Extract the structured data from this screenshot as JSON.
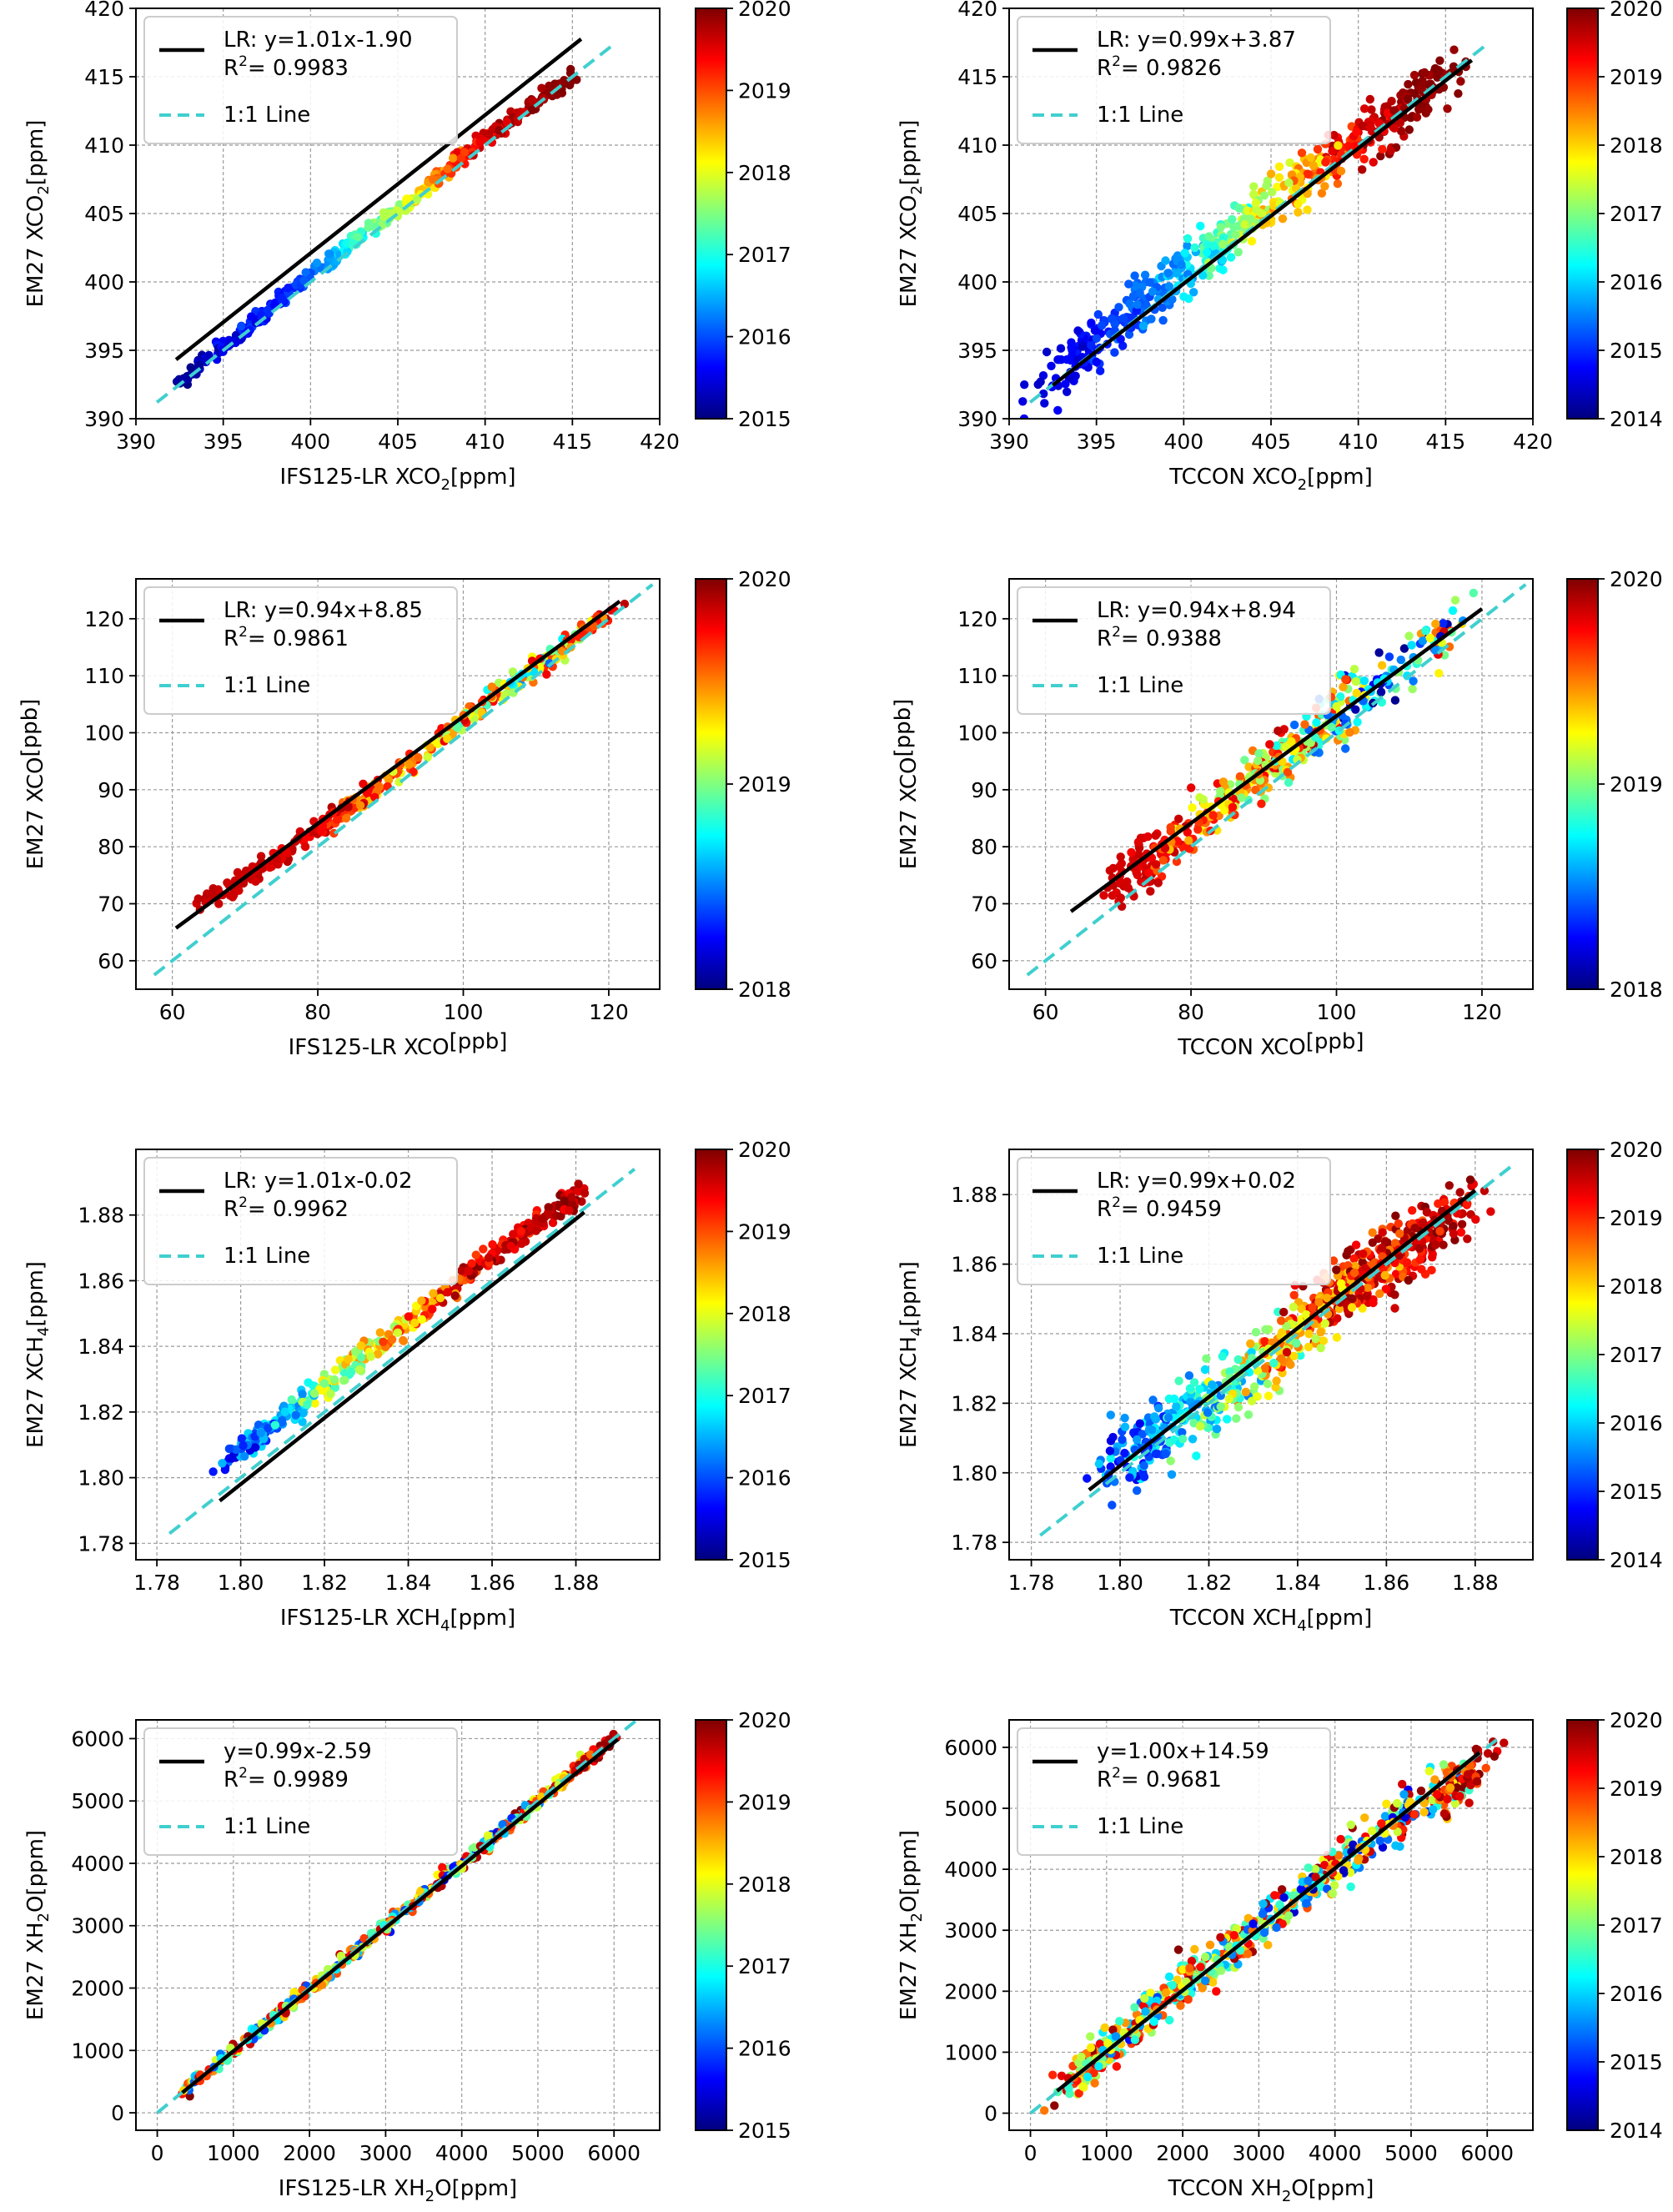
{
  "figure": {
    "colormap": [
      "#00007f",
      "#0000ff",
      "#007fff",
      "#00ffff",
      "#7fff7f",
      "#ffff00",
      "#ff7f00",
      "#ff0000",
      "#7f0000"
    ],
    "fit_line_color": "#000000",
    "identity_line_color": "#40cfcf",
    "legend_identity_label": "1:1 Line",
    "grid": true
  },
  "chart_data": [
    {
      "type": "scatter",
      "id": "xco2-ifs",
      "xlabel": "IFS125-LR XCO",
      "xlabel_sub": "2",
      "xlabel_unit": "[ppm]",
      "ylabel": "EM27 XCO",
      "ylabel_sub": "2",
      "ylabel_unit": "[ppm]",
      "xlim": [
        390,
        420
      ],
      "ylim": [
        390,
        420
      ],
      "xticks": [
        390,
        395,
        400,
        405,
        410,
        415,
        420
      ],
      "yticks": [
        390,
        395,
        400,
        405,
        410,
        415,
        420
      ],
      "fit": {
        "label": "LR: y=1.01x-1.90",
        "slope": 1.01,
        "intercept": -1.9,
        "x_range": [
          392.3,
          415.5
        ]
      },
      "r2_label": "R",
      "r2_value": "= 0.9983",
      "identity_range": [
        391.2,
        417.2
      ],
      "colorbar": {
        "min": 2015,
        "max": 2020,
        "ticks": [
          2015,
          2016,
          2017,
          2018,
          2019,
          2020
        ]
      },
      "cloud": [
        [
          392.5,
          392.9,
          0.05,
          0.0
        ],
        [
          396.0,
          396.2,
          0.2,
          0.05
        ],
        [
          399.5,
          400.0,
          0.2,
          0.15
        ],
        [
          403.0,
          403.5,
          0.35,
          0.5
        ],
        [
          406.0,
          406.2,
          0.55,
          0.7
        ],
        [
          409.0,
          409.5,
          0.75,
          0.95
        ],
        [
          412.0,
          412.4,
          0.92,
          1.0
        ],
        [
          415.0,
          415.0,
          1.0,
          1.0
        ]
      ],
      "spread_x": 0.25,
      "spread_y": 0.3,
      "n_points": 420
    },
    {
      "type": "scatter",
      "id": "xco2-tccon",
      "xlabel": "TCCON XCO",
      "xlabel_sub": "2",
      "xlabel_unit": "[ppm]",
      "ylabel": "EM27 XCO",
      "ylabel_sub": "2",
      "ylabel_unit": "[ppm]",
      "xlim": [
        390,
        420
      ],
      "ylim": [
        390,
        420
      ],
      "xticks": [
        390,
        395,
        400,
        405,
        410,
        415,
        420
      ],
      "yticks": [
        390,
        395,
        400,
        405,
        410,
        415,
        420
      ],
      "fit": {
        "label": "LR: y=0.99x+3.87",
        "slope": 0.99,
        "intercept": 3.87,
        "x_range": [
          392.5,
          416.5
        ]
      },
      "r2_label": "R",
      "r2_value": "= 0.9826",
      "identity_range": [
        391.2,
        417.2
      ],
      "colorbar": {
        "min": 2014,
        "max": 2020,
        "ticks": [
          2014,
          2015,
          2016,
          2017,
          2018,
          2019,
          2020
        ]
      },
      "cloud": [
        [
          392.5,
          393.0,
          0.05,
          0.1
        ],
        [
          396.0,
          396.5,
          0.2,
          0.15
        ],
        [
          399.5,
          400.5,
          0.25,
          0.3
        ],
        [
          403.0,
          403.8,
          0.45,
          0.6
        ],
        [
          406.0,
          406.8,
          0.6,
          0.75
        ],
        [
          409.0,
          409.5,
          0.75,
          0.95
        ],
        [
          412.0,
          412.0,
          0.9,
          1.0
        ],
        [
          415.0,
          415.0,
          1.0,
          1.0
        ]
      ],
      "spread_x": 0.9,
      "spread_y": 1.0,
      "n_points": 560
    },
    {
      "type": "scatter",
      "id": "xco-ifs",
      "xlabel": "IFS125-LR XCO",
      "xlabel_sub": "",
      "xlabel_unit": "[ppb]",
      "ylabel": "EM27 XCO",
      "ylabel_sub": "",
      "ylabel_unit": "[ppb]",
      "xlim": [
        55,
        127
      ],
      "ylim": [
        55,
        127
      ],
      "xticks": [
        60,
        80,
        100,
        120
      ],
      "yticks": [
        60,
        70,
        80,
        90,
        100,
        110,
        120
      ],
      "fit": {
        "label": "LR: y=0.94x+8.85",
        "slope": 0.94,
        "intercept": 8.85,
        "x_range": [
          60.5,
          121.5
        ]
      },
      "r2_label": "R",
      "r2_value": "= 0.9861",
      "identity_range": [
        57.5,
        126.0
      ],
      "colorbar": {
        "min": 2018,
        "max": 2020,
        "ticks": [
          2018,
          2019,
          2020
        ]
      },
      "cloud": [
        [
          64,
          70,
          0.95,
          0.9
        ],
        [
          72,
          76,
          0.9,
          0.95
        ],
        [
          80,
          83,
          0.85,
          0.95
        ],
        [
          88,
          90,
          0.6,
          0.95
        ],
        [
          96,
          98,
          0.5,
          0.95
        ],
        [
          104,
          106,
          0.3,
          0.9
        ],
        [
          112,
          113,
          0.2,
          0.9
        ],
        [
          121,
          122,
          0.9,
          1.0
        ]
      ],
      "spread_x": 0.8,
      "spread_y": 0.9,
      "n_points": 400
    },
    {
      "type": "scatter",
      "id": "xco-tccon",
      "xlabel": "TCCON XCO",
      "xlabel_sub": "",
      "xlabel_unit": "[ppb]",
      "ylabel": "EM27 XCO",
      "ylabel_sub": "",
      "ylabel_unit": "[ppb]",
      "xlim": [
        55,
        127
      ],
      "ylim": [
        55,
        127
      ],
      "xticks": [
        60,
        80,
        100,
        120
      ],
      "yticks": [
        60,
        70,
        80,
        90,
        100,
        110,
        120
      ],
      "fit": {
        "label": "LR: y=0.94x+8.94",
        "slope": 0.94,
        "intercept": 8.94,
        "x_range": [
          63.5,
          120.0
        ]
      },
      "r2_label": "R",
      "r2_value": "= 0.9388",
      "identity_range": [
        57.5,
        126.0
      ],
      "colorbar": {
        "min": 2018,
        "max": 2020,
        "ticks": [
          2018,
          2019,
          2020
        ]
      },
      "cloud": [
        [
          70,
          73,
          0.95,
          0.9
        ],
        [
          76,
          79,
          0.85,
          0.95
        ],
        [
          82,
          85,
          0.5,
          0.9
        ],
        [
          88,
          91,
          0.45,
          0.9
        ],
        [
          94,
          97,
          0.4,
          0.95
        ],
        [
          100,
          103,
          0.05,
          0.95
        ],
        [
          106,
          108,
          0.0,
          0.5
        ],
        [
          117,
          119,
          0.0,
          1.0
        ]
      ],
      "spread_x": 2.0,
      "spread_y": 2.5,
      "n_points": 460
    },
    {
      "type": "scatter",
      "id": "xch4-ifs",
      "xlabel": "IFS125-LR XCH",
      "xlabel_sub": "4",
      "xlabel_unit": "[ppm]",
      "ylabel": "EM27 XCH",
      "ylabel_sub": "4",
      "ylabel_unit": "[ppm]",
      "xlim": [
        1.775,
        1.9
      ],
      "ylim": [
        1.775,
        1.9
      ],
      "xticks": [
        1.78,
        1.8,
        1.82,
        1.84,
        1.86,
        1.88
      ],
      "yticks": [
        1.78,
        1.8,
        1.82,
        1.84,
        1.86,
        1.88
      ],
      "tick_decimals": 2,
      "fit": {
        "label": "LR: y=1.01x-0.02",
        "slope": 1.01,
        "intercept": -0.02,
        "x_range": [
          1.795,
          1.882
        ]
      },
      "r2_label": "R",
      "r2_value": "= 0.9962",
      "identity_range": [
        1.783,
        1.894
      ],
      "colorbar": {
        "min": 2015,
        "max": 2020,
        "ticks": [
          2015,
          2016,
          2017,
          2018,
          2019,
          2020
        ]
      },
      "cloud": [
        [
          1.797,
          1.805,
          0.05,
          0.3
        ],
        [
          1.81,
          1.818,
          0.2,
          0.45
        ],
        [
          1.824,
          1.832,
          0.35,
          0.75
        ],
        [
          1.838,
          1.845,
          0.55,
          0.85
        ],
        [
          1.852,
          1.86,
          0.7,
          1.0
        ],
        [
          1.866,
          1.873,
          0.8,
          1.0
        ],
        [
          1.88,
          1.886,
          0.9,
          1.0
        ]
      ],
      "spread_x": 0.0015,
      "spread_y": 0.0018,
      "n_points": 420
    },
    {
      "type": "scatter",
      "id": "xch4-tccon",
      "xlabel": "TCCON XCH",
      "xlabel_sub": "4",
      "xlabel_unit": "[ppm]",
      "ylabel": "EM27 XCH",
      "ylabel_sub": "4",
      "ylabel_unit": "[ppm]",
      "xlim": [
        1.775,
        1.893
      ],
      "ylim": [
        1.775,
        1.893
      ],
      "xticks": [
        1.78,
        1.8,
        1.82,
        1.84,
        1.86,
        1.88
      ],
      "yticks": [
        1.78,
        1.8,
        1.82,
        1.84,
        1.86,
        1.88
      ],
      "tick_decimals": 2,
      "fit": {
        "label": "LR: y=0.99x+0.02",
        "slope": 0.99,
        "intercept": 0.02,
        "x_range": [
          1.793,
          1.88
        ]
      },
      "r2_label": "R",
      "r2_value": "= 0.9459",
      "identity_range": [
        1.782,
        1.888
      ],
      "colorbar": {
        "min": 2014,
        "max": 2020,
        "ticks": [
          2014,
          2015,
          2016,
          2017,
          2018,
          2019,
          2020
        ]
      },
      "cloud": [
        [
          1.8,
          1.805,
          0.05,
          0.3
        ],
        [
          1.81,
          1.812,
          0.15,
          0.45
        ],
        [
          1.822,
          1.822,
          0.25,
          0.55
        ],
        [
          1.835,
          1.835,
          0.4,
          0.9
        ],
        [
          1.845,
          1.847,
          0.6,
          1.0
        ],
        [
          1.855,
          1.858,
          0.7,
          1.0
        ],
        [
          1.865,
          1.865,
          0.8,
          1.0
        ],
        [
          1.876,
          1.872,
          0.85,
          1.0
        ]
      ],
      "spread_x": 0.004,
      "spread_y": 0.005,
      "n_points": 700
    },
    {
      "type": "scatter",
      "id": "xh2o-ifs",
      "xlabel": "IFS125-LR XH",
      "xlabel_sub": "2",
      "xlabel_unit": "O[ppm]",
      "ylabel": "EM27 XH",
      "ylabel_sub": "2",
      "ylabel_unit": "O[ppm]",
      "xlim": [
        -280,
        6600
      ],
      "ylim": [
        -280,
        6300
      ],
      "xticks": [
        0,
        1000,
        2000,
        3000,
        4000,
        5000,
        6000
      ],
      "yticks": [
        0,
        1000,
        2000,
        3000,
        4000,
        5000,
        6000
      ],
      "fit": {
        "label": "y=0.99x-2.59",
        "slope": 0.99,
        "intercept": -2.59,
        "x_range": [
          330,
          6050
        ]
      },
      "r2_label": "R",
      "r2_value": "= 0.9989",
      "identity_range": [
        0,
        6350
      ],
      "colorbar": {
        "min": 2015,
        "max": 2020,
        "ticks": [
          2015,
          2016,
          2017,
          2018,
          2019,
          2020
        ]
      },
      "cloud": [
        [
          350,
          350,
          0.2,
          1.0
        ],
        [
          1200,
          1200,
          0.1,
          1.0
        ],
        [
          2200,
          2200,
          0.2,
          0.95
        ],
        [
          3200,
          3200,
          0.1,
          1.0
        ],
        [
          4200,
          4200,
          0.0,
          1.0
        ],
        [
          5200,
          5200,
          0.3,
          1.0
        ],
        [
          5950,
          5950,
          0.9,
          1.0
        ]
      ],
      "spread_x": 50,
      "spread_y": 60,
      "n_points": 460
    },
    {
      "type": "scatter",
      "id": "xh2o-tccon",
      "xlabel": "TCCON XH",
      "xlabel_sub": "2",
      "xlabel_unit": "O[ppm]",
      "ylabel": "EM27 XH",
      "ylabel_sub": "2",
      "ylabel_unit": "O[ppm]",
      "xlim": [
        -280,
        6600
      ],
      "ylim": [
        -280,
        6450
      ],
      "xticks": [
        0,
        1000,
        2000,
        3000,
        4000,
        5000,
        6000
      ],
      "yticks": [
        0,
        1000,
        2000,
        3000,
        4000,
        5000,
        6000
      ],
      "fit": {
        "label": "y=1.00x+14.59",
        "slope": 1.0,
        "intercept": 14.59,
        "x_range": [
          350,
          5900
        ]
      },
      "r2_label": "R",
      "r2_value": "= 0.9681",
      "identity_range": [
        0,
        6200
      ],
      "colorbar": {
        "min": 2014,
        "max": 2020,
        "ticks": [
          2014,
          2015,
          2016,
          2017,
          2018,
          2019,
          2020
        ]
      },
      "cloud": [
        [
          400,
          400,
          0.5,
          1.0
        ],
        [
          1200,
          1250,
          0.1,
          1.0
        ],
        [
          2200,
          2250,
          0.3,
          1.0
        ],
        [
          3200,
          3250,
          0.1,
          1.0
        ],
        [
          4200,
          4250,
          0.0,
          1.0
        ],
        [
          5200,
          5100,
          0.1,
          1.0
        ],
        [
          5850,
          5600,
          0.9,
          1.0
        ]
      ],
      "spread_x": 180,
      "spread_y": 200,
      "n_points": 620
    }
  ]
}
